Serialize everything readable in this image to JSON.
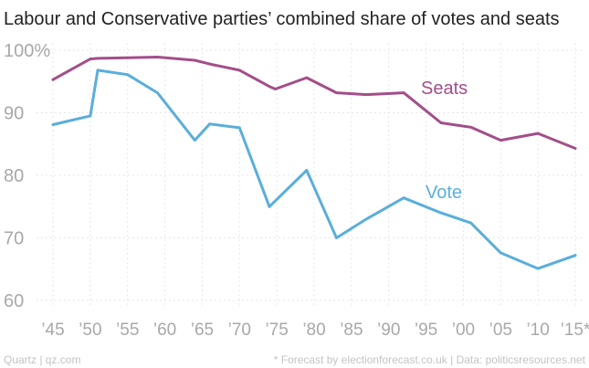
{
  "chart_data": {
    "type": "line",
    "title": "Labour and Conservative parties’ combined share of votes and seats",
    "xlabel": "",
    "ylabel": "",
    "ylim": [
      60,
      100
    ],
    "yticks": [
      60,
      70,
      80,
      90,
      100
    ],
    "ytick_labels": [
      "60",
      "70",
      "80",
      "90",
      "100%"
    ],
    "xlim": [
      1944,
      2015.5
    ],
    "xticks": [
      1945,
      1950,
      1955,
      1960,
      1965,
      1970,
      1975,
      1980,
      1985,
      1990,
      1995,
      2000,
      2005,
      2010,
      2015
    ],
    "xtick_labels": [
      "’45",
      "’50",
      "’55",
      "’60",
      "’65",
      "’70",
      "’75",
      "’80",
      "’85",
      "’90",
      "’95",
      "’00",
      "’05",
      "’10",
      "’15*"
    ],
    "grid": true,
    "series": [
      {
        "name": "Seats",
        "color": "#a34e89",
        "x": [
          1945,
          1950,
          1951,
          1955,
          1959,
          1964,
          1966,
          1970,
          1974,
          1974.8,
          1979,
          1983,
          1987,
          1992,
          1997,
          2001,
          2005,
          2010,
          2015
        ],
        "values": [
          95.3,
          98.6,
          98.7,
          98.8,
          98.9,
          98.4,
          97.8,
          96.8,
          94.2,
          93.8,
          95.6,
          93.2,
          92.9,
          93.2,
          88.4,
          87.7,
          85.6,
          86.7,
          84.3
        ]
      },
      {
        "name": "Vote",
        "color": "#5aaedb",
        "x": [
          1945,
          1950,
          1951,
          1955,
          1959,
          1964,
          1966,
          1970,
          1974,
          1979,
          1983,
          1987,
          1992,
          1997,
          2001,
          2005,
          2010,
          2015
        ],
        "values": [
          88.1,
          89.5,
          96.8,
          96.1,
          93.2,
          85.6,
          88.2,
          87.6,
          75.0,
          80.8,
          70.0,
          73.0,
          76.4,
          74.0,
          72.4,
          67.6,
          65.1,
          67.2
        ]
      }
    ]
  },
  "footer": {
    "source_left": "Quartz | qz.com",
    "source_right": "* Forecast by electionforecast.co.uk | Data: politicsresources.net"
  }
}
